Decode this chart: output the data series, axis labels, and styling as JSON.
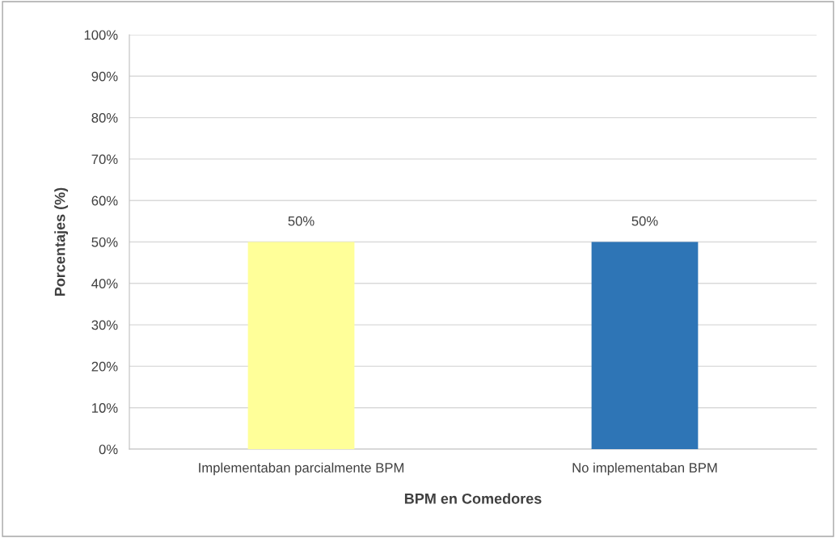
{
  "chart_data": {
    "type": "bar",
    "xlabel": "BPM en Comedores",
    "ylabel": "Porcentajes (%)",
    "categories": [
      "Implementaban parcialmente BPM",
      "No implementaban BPM"
    ],
    "values": [
      50,
      50
    ],
    "colors": [
      "#ffff99",
      "#2e75b6"
    ],
    "value_labels": [
      "50%",
      "50%"
    ],
    "ylim": [
      0,
      100
    ],
    "yticks": [
      {
        "value": 0,
        "label": "0%"
      },
      {
        "value": 10,
        "label": "10%"
      },
      {
        "value": 20,
        "label": "20%"
      },
      {
        "value": 30,
        "label": "30%"
      },
      {
        "value": 40,
        "label": "40%"
      },
      {
        "value": 50,
        "label": "50%"
      },
      {
        "value": 60,
        "label": "60%"
      },
      {
        "value": 70,
        "label": "70%"
      },
      {
        "value": 80,
        "label": "80%"
      },
      {
        "value": 90,
        "label": "90%"
      },
      {
        "value": 100,
        "label": "100%"
      }
    ],
    "grid": "y",
    "legend": false
  }
}
